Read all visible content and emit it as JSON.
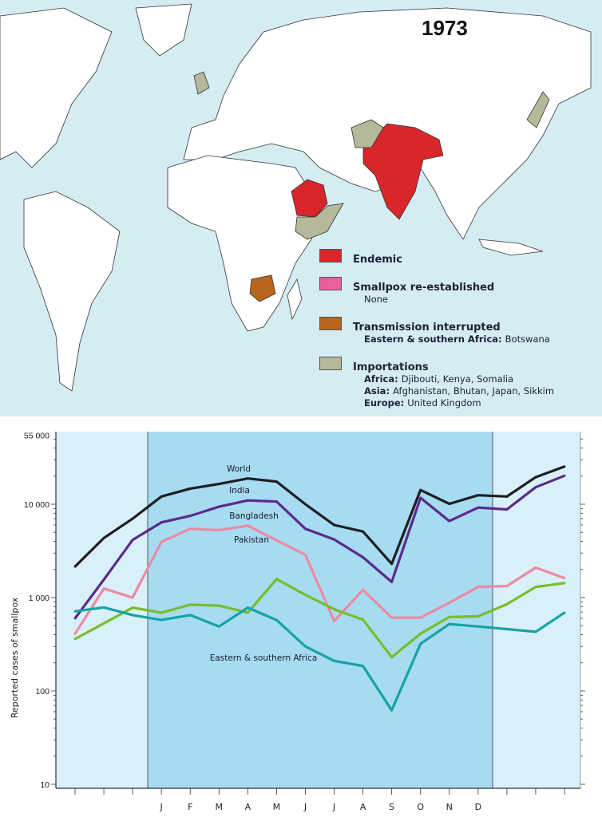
{
  "map": {
    "year": "1973",
    "legend": [
      {
        "label": "Endemic",
        "color": "#d8262a",
        "details": []
      },
      {
        "label": "Smallpox re-established",
        "color": "#e8609a",
        "details": [
          {
            "region": "",
            "countries": "None"
          }
        ]
      },
      {
        "label": "Transmission interrupted",
        "color": "#b8651e",
        "details": [
          {
            "region": "Eastern & southern Africa:",
            "countries": "Botswana"
          }
        ]
      },
      {
        "label": "Importations",
        "color": "#b5b99a",
        "details": [
          {
            "region": "Africa:",
            "countries": "Djibouti, Kenya, Somalia"
          },
          {
            "region": "Asia:",
            "countries": "Afghanistan, Bhutan, Japan, Sikkim"
          },
          {
            "region": "Europe:",
            "countries": "United Kingdom"
          }
        ]
      }
    ]
  },
  "chart_data": {
    "type": "line",
    "title": "",
    "ylabel": "Reported cases of smallpox",
    "xlabel": "",
    "yscale": "log",
    "ylim": [
      10,
      55000
    ],
    "y_ticks": [
      {
        "value": 55000,
        "label": "55 000"
      },
      {
        "value": 10000,
        "label": "10 000"
      },
      {
        "value": 1000,
        "label": "1 000"
      },
      {
        "value": 100,
        "label": "100"
      },
      {
        "value": 10,
        "label": "10"
      }
    ],
    "x_tick_labels": [
      "",
      "",
      "",
      "J",
      "F",
      "M",
      "A",
      "M",
      "J",
      "J",
      "A",
      "S",
      "O",
      "N",
      "D",
      "",
      "",
      ""
    ],
    "highlight_range": [
      "J",
      "D"
    ],
    "series": [
      {
        "name": "World",
        "color": "#1e1e22",
        "values": [
          2150,
          4350,
          7000,
          12100,
          14700,
          16500,
          18900,
          17500,
          10000,
          6000,
          5100,
          2300,
          14200,
          10100,
          12500,
          12100,
          19500,
          25300
        ]
      },
      {
        "name": "India",
        "color": "#5b2a8c",
        "values": [
          600,
          1560,
          4150,
          6400,
          7500,
          9400,
          11000,
          10700,
          5450,
          4200,
          2700,
          1470,
          11700,
          6600,
          9200,
          8800,
          15200,
          20200
        ]
      },
      {
        "name": "Bangladesh",
        "color": "#ec8aa2",
        "values": [
          410,
          1250,
          1000,
          3950,
          5450,
          5270,
          5900,
          4100,
          2870,
          560,
          1210,
          610,
          610,
          880,
          1300,
          1330,
          2090,
          1620
        ]
      },
      {
        "name": "Pakistan",
        "color": "#78bd2c",
        "values": [
          360,
          530,
          780,
          690,
          840,
          820,
          690,
          1580,
          1070,
          750,
          580,
          230,
          410,
          620,
          630,
          850,
          1300,
          1430
        ]
      },
      {
        "name": "Eastern & southern Africa",
        "color": "#17a3a6",
        "values": [
          713,
          785,
          650,
          575,
          650,
          490,
          780,
          575,
          300,
          210,
          185,
          62,
          320,
          520,
          490,
          460,
          430,
          690
        ]
      }
    ]
  }
}
